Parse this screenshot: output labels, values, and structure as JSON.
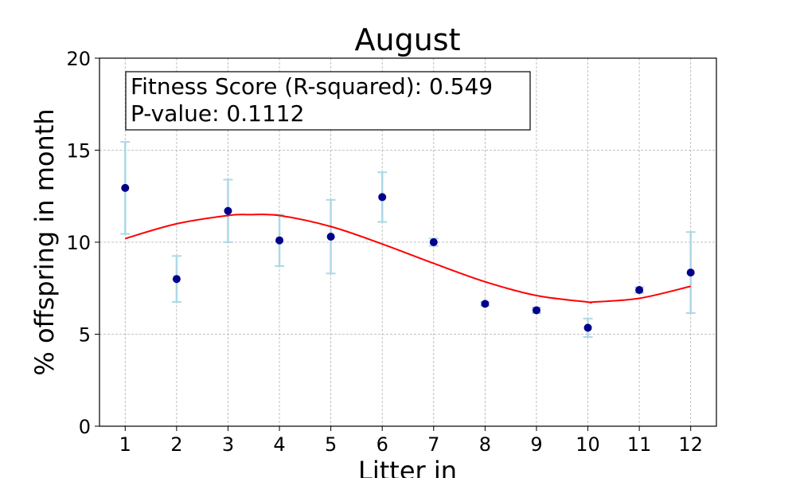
{
  "chart_data": {
    "type": "scatter",
    "title": "August",
    "xlabel": "Litter in",
    "ylabel": "% offspring in month",
    "xlim": [
      0.5,
      12.5
    ],
    "ylim": [
      0,
      20
    ],
    "x_ticks": [
      1,
      2,
      3,
      4,
      5,
      6,
      7,
      8,
      9,
      10,
      11,
      12
    ],
    "y_ticks": [
      0,
      5,
      10,
      15,
      20
    ],
    "grid": true,
    "colors": {
      "points": "#00008b",
      "error_bars": "#add8e6",
      "fit_line": "#ff0000",
      "grid": "#b0b0b0"
    },
    "series": [
      {
        "x": [
          1,
          2,
          3,
          4,
          5,
          6,
          7,
          8,
          9,
          10,
          11,
          12
        ],
        "y": [
          12.95,
          8.0,
          11.7,
          10.1,
          10.3,
          12.45,
          10.0,
          6.65,
          6.3,
          5.35,
          7.4,
          8.35
        ],
        "error": [
          2.5,
          1.25,
          1.7,
          1.4,
          2.0,
          1.35,
          0.2,
          0.1,
          0.15,
          0.5,
          0.15,
          2.2
        ]
      }
    ],
    "fit_curve": {
      "x": [
        1,
        2,
        3,
        3.4,
        4,
        5,
        6,
        7,
        8,
        9,
        10,
        10.1,
        11,
        12
      ],
      "y": [
        10.2,
        11.0,
        11.45,
        11.5,
        11.45,
        10.85,
        9.9,
        8.85,
        7.85,
        7.1,
        6.75,
        6.75,
        6.95,
        7.6
      ]
    },
    "annotation": {
      "line1": "Fitness Score (R-squared): 0.549",
      "line2": "P-value: 0.1112"
    }
  }
}
